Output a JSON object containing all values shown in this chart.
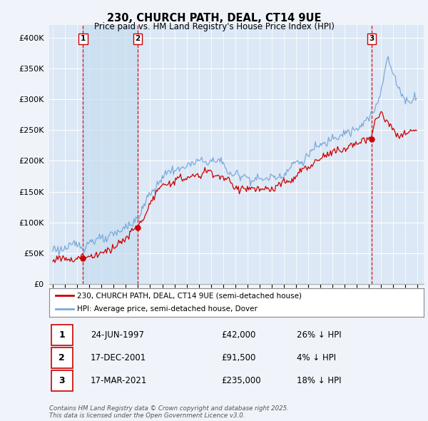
{
  "title": "230, CHURCH PATH, DEAL, CT14 9UE",
  "subtitle": "Price paid vs. HM Land Registry's House Price Index (HPI)",
  "legend_line1": "230, CHURCH PATH, DEAL, CT14 9UE (semi-detached house)",
  "legend_line2": "HPI: Average price, semi-detached house, Dover",
  "footer": "Contains HM Land Registry data © Crown copyright and database right 2025.\nThis data is licensed under the Open Government Licence v3.0.",
  "transactions": [
    {
      "num": 1,
      "date": "24-JUN-1997",
      "price": "£42,000",
      "hpi": "26% ↓ HPI"
    },
    {
      "num": 2,
      "date": "17-DEC-2001",
      "price": "£91,500",
      "hpi": "4% ↓ HPI"
    },
    {
      "num": 3,
      "date": "17-MAR-2021",
      "price": "£235,000",
      "hpi": "18% ↓ HPI"
    }
  ],
  "sale_dates": [
    1997.48,
    2001.96,
    2021.21
  ],
  "sale_prices": [
    42000,
    91500,
    235000
  ],
  "background_color": "#f0f4fa",
  "plot_bg": "#dce8f5",
  "red_line_color": "#cc0000",
  "blue_line_color": "#7aaadd",
  "grid_color": "#c8d8e8",
  "shade_color": "#c8ddf0",
  "ylim": [
    0,
    420000
  ],
  "xlim": [
    1994.7,
    2025.5
  ]
}
